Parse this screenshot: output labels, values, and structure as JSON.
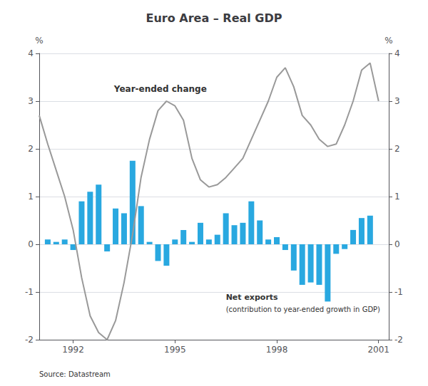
{
  "chart_data": {
    "type": "bar",
    "title": "Euro Area – Real GDP",
    "ylabel": "%",
    "y2label": "%",
    "annotations": [
      "Year-ended change",
      "Net exports",
      "(contribution to year-ended growth in GDP)",
      "Source: Datastream"
    ],
    "xlim": [
      1991.0,
      2001.3
    ],
    "xticks": [
      1992,
      1995,
      1998,
      2001
    ],
    "ylim": [
      -2,
      4
    ],
    "yticks": [
      -2,
      -1,
      0,
      1,
      2,
      3,
      4
    ],
    "y2lim": [
      -2,
      4
    ],
    "y2ticks": [
      -2,
      -1,
      0,
      1,
      2,
      3,
      4
    ],
    "grid": true,
    "series": [
      {
        "type": "bar",
        "color": "#29a8e0",
        "x": [
          1991.25,
          1991.5,
          1991.75,
          1992.0,
          1992.25,
          1992.5,
          1992.75,
          1993.0,
          1993.25,
          1993.5,
          1993.75,
          1994.0,
          1994.25,
          1994.5,
          1994.75,
          1995.0,
          1995.25,
          1995.5,
          1995.75,
          1996.0,
          1996.25,
          1996.5,
          1996.75,
          1997.0,
          1997.25,
          1997.5,
          1997.75,
          1998.0,
          1998.25,
          1998.5,
          1998.75,
          1999.0,
          1999.25,
          1999.5,
          1999.75,
          2000.0,
          2000.25,
          2000.5,
          2000.75
        ],
        "values": [
          0.1,
          0.05,
          0.1,
          -0.12,
          0.9,
          1.1,
          1.25,
          -0.15,
          0.75,
          0.65,
          1.75,
          0.8,
          0.05,
          -0.35,
          -0.45,
          0.1,
          0.3,
          0.05,
          0.45,
          0.1,
          0.2,
          0.65,
          0.4,
          0.45,
          0.9,
          0.5,
          0.1,
          0.15,
          -0.12,
          -0.55,
          -0.85,
          -0.8,
          -0.85,
          -1.2,
          -0.2,
          -0.1,
          0.3,
          0.55,
          0.6
        ]
      },
      {
        "type": "line",
        "color": "#999999",
        "x": [
          1991.0,
          1991.25,
          1991.5,
          1991.75,
          1992.0,
          1992.25,
          1992.5,
          1992.75,
          1993.0,
          1993.25,
          1993.5,
          1993.75,
          1994.0,
          1994.25,
          1994.5,
          1994.75,
          1995.0,
          1995.25,
          1995.5,
          1995.75,
          1996.0,
          1996.25,
          1996.5,
          1996.75,
          1997.0,
          1997.25,
          1997.5,
          1997.75,
          1998.0,
          1998.25,
          1998.5,
          1998.75,
          1999.0,
          1999.25,
          1999.5,
          1999.75,
          2000.0,
          2000.25,
          2000.5,
          2000.75,
          2001.0
        ],
        "values": [
          2.7,
          2.1,
          1.55,
          1.0,
          0.3,
          -0.7,
          -1.5,
          -1.85,
          -2.0,
          -1.6,
          -0.8,
          0.2,
          1.4,
          2.2,
          2.8,
          3.0,
          2.9,
          2.6,
          1.8,
          1.35,
          1.2,
          1.25,
          1.4,
          1.6,
          1.8,
          2.2,
          2.6,
          3.0,
          3.5,
          3.7,
          3.3,
          2.7,
          2.5,
          2.2,
          2.05,
          2.1,
          2.5,
          3.0,
          3.65,
          3.8,
          3.0
        ]
      }
    ]
  }
}
